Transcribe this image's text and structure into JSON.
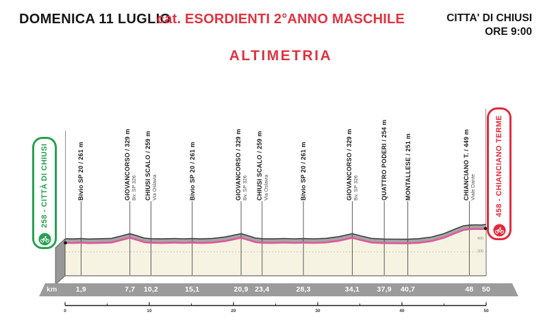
{
  "header": {
    "date": "DOMENICA 11 LUGLIO",
    "category": "cat. ESORDIENTI 2°ANNO MASCHILE",
    "page_title": "ALTIMETRIA",
    "start_place": "CITTA' DI CHIUSI",
    "start_time": "ORE 9:00"
  },
  "start_badge": {
    "label": "258 - CITTÀ DI CHIUSI",
    "icon": "cyclist-icon"
  },
  "finish_badge": {
    "label": "458 - CHIANCIANO TERME",
    "icon": "cyclist-icon"
  },
  "colors": {
    "title_red": "#e03340",
    "badge_green": "#27a04f",
    "badge_red": "#e1293b",
    "route_pink": "#e0569c",
    "profile_top_gray": "#a5a5a5",
    "profile_outline": "#3e3e3e",
    "profile_face": "#f6f3e2",
    "km_bar_gray": "#9b9b9b"
  },
  "chart_data": {
    "type": "area",
    "title": "ALTIMETRIA",
    "xlabel": "km",
    "km_unit": "km",
    "x_range_km": [
      0,
      50
    ],
    "start": {
      "name": "CITTÀ DI CHIUSI",
      "elevation_m": 258,
      "km": 0
    },
    "finish": {
      "name": "CHIANCIANO TERME",
      "elevation_m": 458,
      "km": 50
    },
    "waypoints": [
      {
        "km": 1.9,
        "km_label": "1,9",
        "name": "Bivio SP 20",
        "elevation_m": 261,
        "sub": ""
      },
      {
        "km": 7.7,
        "km_label": "7,7",
        "name": "GIOVANCORSO",
        "elevation_m": 329,
        "sub": "Bv. SP 326"
      },
      {
        "km": 10.2,
        "km_label": "10,2",
        "name": "CHIUSI SCALO",
        "elevation_m": 259,
        "sub": "Via Oslavia"
      },
      {
        "km": 15.1,
        "km_label": "15,1",
        "name": "Bivio SP 20",
        "elevation_m": 261,
        "sub": ""
      },
      {
        "km": 20.9,
        "km_label": "20,9",
        "name": "GIOVANCORSO",
        "elevation_m": 329,
        "sub": "Bv. SP 326"
      },
      {
        "km": 23.4,
        "km_label": "23,4",
        "name": "CHIUSI SCALO",
        "elevation_m": 259,
        "sub": "Via Oslavia"
      },
      {
        "km": 28.3,
        "km_label": "28,3",
        "name": "Bivio SP 20",
        "elevation_m": 261,
        "sub": ""
      },
      {
        "km": 34.1,
        "km_label": "34,1",
        "name": "GIOVANCORSO",
        "elevation_m": 329,
        "sub": "Bv. SP 326"
      },
      {
        "km": 37.9,
        "km_label": "37,9",
        "name": "QUATTRO PODERI",
        "elevation_m": 254,
        "sub": ""
      },
      {
        "km": 40.7,
        "km_label": "40,7",
        "name": "MONTALLESE",
        "elevation_m": 251,
        "sub": ""
      },
      {
        "km": 48,
        "km_label": "48",
        "name": "CHIANCIANO T.",
        "elevation_m": 449,
        "sub": "Viale Dante"
      },
      {
        "km": 50,
        "km_label": "50",
        "name": "",
        "elevation_m": 458,
        "sub": ""
      }
    ],
    "profile": [
      [
        0,
        258
      ],
      [
        1,
        256
      ],
      [
        1.9,
        261
      ],
      [
        2.8,
        254
      ],
      [
        4,
        258
      ],
      [
        5.5,
        263
      ],
      [
        6.6,
        295
      ],
      [
        7.7,
        329
      ],
      [
        8.6,
        298
      ],
      [
        9.4,
        268
      ],
      [
        10.2,
        259
      ],
      [
        11.5,
        256
      ],
      [
        13,
        261
      ],
      [
        14,
        257
      ],
      [
        15.1,
        261
      ],
      [
        16.2,
        256
      ],
      [
        17.5,
        263
      ],
      [
        19,
        283
      ],
      [
        20.9,
        329
      ],
      [
        21.8,
        298
      ],
      [
        22.6,
        268
      ],
      [
        23.4,
        259
      ],
      [
        24.6,
        256
      ],
      [
        26,
        262
      ],
      [
        27.2,
        257
      ],
      [
        28.3,
        261
      ],
      [
        29.5,
        257
      ],
      [
        31,
        264
      ],
      [
        32.5,
        288
      ],
      [
        34.1,
        329
      ],
      [
        35.2,
        295
      ],
      [
        36.4,
        263
      ],
      [
        37.9,
        254
      ],
      [
        39.2,
        252
      ],
      [
        40.7,
        251
      ],
      [
        42,
        259
      ],
      [
        43.5,
        282
      ],
      [
        45,
        330
      ],
      [
        46.3,
        392
      ],
      [
        47.3,
        438
      ],
      [
        48,
        449
      ],
      [
        48.8,
        452
      ],
      [
        49.4,
        450
      ],
      [
        50,
        458
      ]
    ],
    "elevation_scale_marks": [
      "400",
      "200"
    ],
    "ruler_km_ticks": [
      "0",
      "10",
      "20",
      "30",
      "40",
      "50"
    ]
  }
}
